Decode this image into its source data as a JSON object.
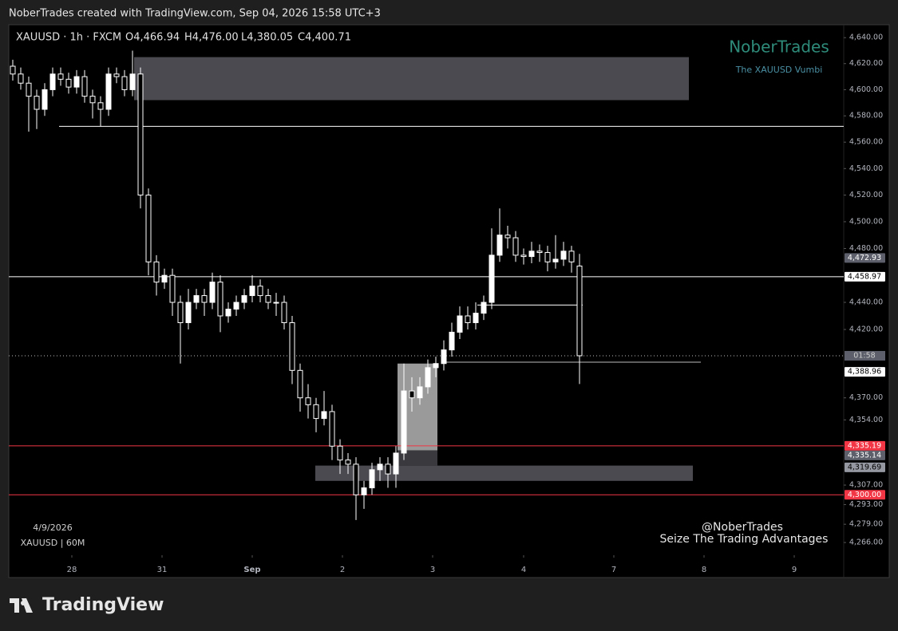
{
  "header": "NoberTrades created with TradingView.com, Sep 04, 2026 15:58 UTC+3",
  "brand": "TradingView",
  "chart_data": {
    "type": "candlestick",
    "title": "XAUUSD · 1h · FXCM",
    "ohlc_labels": [
      "O4,466.94",
      "H4,476.00",
      "L4,380.05",
      "C4,400.71"
    ],
    "watermark": {
      "title": "NoberTrades",
      "subtitle": "The XAUUSD Vumbi"
    },
    "annotations": [
      "4/9/2026",
      "XAUUSD | 60M",
      "@NoberTrades",
      "Seize The Trading Advantages"
    ],
    "countdown": "01:58",
    "log": true,
    "xlim": [
      0,
      104.6
    ],
    "ylim": [
      4257,
      4650
    ],
    "xticks": [
      {
        "value": 7.9,
        "label": "28"
      },
      {
        "value": 19.2,
        "label": "31"
      },
      {
        "value": 30.5,
        "label": "Sep"
      },
      {
        "value": 41.8,
        "label": "2"
      },
      {
        "value": 53.1,
        "label": "3"
      },
      {
        "value": 64.5,
        "label": "4"
      },
      {
        "value": 75.8,
        "label": "7"
      },
      {
        "value": 87.1,
        "label": "8"
      },
      {
        "value": 98.4,
        "label": "9"
      }
    ],
    "yticks": [
      {
        "value": 4640,
        "label": "4,640.00"
      },
      {
        "value": 4620,
        "label": "4,620.00"
      },
      {
        "value": 4600,
        "label": "4,600.00"
      },
      {
        "value": 4580,
        "label": "4,580.00"
      },
      {
        "value": 4560,
        "label": "4,560.00"
      },
      {
        "value": 4540,
        "label": "4,540.00"
      },
      {
        "value": 4520,
        "label": "4,520.00"
      },
      {
        "value": 4500,
        "label": "4,500.00"
      },
      {
        "value": 4480,
        "label": "4,480.00"
      },
      {
        "value": 4440,
        "label": "4,440.00"
      },
      {
        "value": 4420,
        "label": "4,420.00"
      },
      {
        "value": 4370,
        "label": "4,370.00"
      },
      {
        "value": 4354,
        "label": "4,354.00"
      },
      {
        "value": 4307,
        "label": "4,307.00"
      },
      {
        "value": 4293,
        "label": "4,293.00"
      },
      {
        "value": 4279,
        "label": "4,279.00"
      },
      {
        "value": 4266,
        "label": "4,266.00"
      }
    ],
    "up_color": "#ffffff",
    "down_color": "#000000",
    "x": [
      0.5,
      1.5,
      2.5,
      3.5,
      4.5,
      5.5,
      6.5,
      7.5,
      8.5,
      9.5,
      10.5,
      11.5,
      12.5,
      13.5,
      14.5,
      15.5,
      16.5,
      17.5,
      18.5,
      19.5,
      20.5,
      21.5,
      22.5,
      23.5,
      24.5,
      25.5,
      26.5,
      27.5,
      28.5,
      29.5,
      30.5,
      31.5,
      32.5,
      33.5,
      34.5,
      35.5,
      36.5,
      37.5,
      38.5,
      39.5,
      40.5,
      41.5,
      42.5,
      43.5,
      44.5,
      45.5,
      46.5,
      47.5,
      48.5,
      49.5,
      50.5,
      51.5,
      52.5,
      53.5,
      54.5,
      55.5,
      56.5,
      57.5,
      58.5,
      59.5,
      60.5,
      61.5,
      62.5,
      63.5,
      64.5,
      65.5,
      66.5,
      67.5,
      68.5,
      69.5,
      70.5,
      71.5
    ],
    "open": [
      4618,
      4612,
      4605,
      4595,
      4585,
      4600,
      4612,
      4608,
      4602,
      4610,
      4595,
      4590,
      4585,
      4612,
      4610,
      4600,
      4612,
      4520,
      4470,
      4455,
      4460,
      4440,
      4425,
      4440,
      4445,
      4440,
      4455,
      4430,
      4435,
      4440,
      4445,
      4452,
      4445,
      4440,
      4440,
      4425,
      4390,
      4370,
      4365,
      4355,
      4360,
      4335,
      4325,
      4322,
      4300,
      4305,
      4318,
      4322,
      4315,
      4330,
      4375,
      4370,
      4378,
      4392,
      4395,
      4405,
      4418,
      4430,
      4425,
      4432,
      4440,
      4475,
      4490,
      4488,
      4475,
      4474,
      4478,
      4477,
      4470,
      4472,
      4478,
      4466.94
    ],
    "high": [
      4623,
      4617,
      4610,
      4600,
      4605,
      4617,
      4617,
      4613,
      4615,
      4615,
      4600,
      4595,
      4617,
      4617,
      4615,
      4630,
      4617,
      4525,
      4475,
      4465,
      4465,
      4445,
      4450,
      4450,
      4450,
      4462,
      4460,
      4440,
      4445,
      4450,
      4460,
      4457,
      4450,
      4447,
      4445,
      4430,
      4395,
      4380,
      4370,
      4375,
      4365,
      4340,
      4330,
      4327,
      4310,
      4323,
      4327,
      4327,
      4335,
      4395,
      4385,
      4385,
      4398,
      4400,
      4412,
      4425,
      4437,
      4437,
      4440,
      4445,
      4495,
      4510,
      4497,
      4493,
      4480,
      4485,
      4483,
      4482,
      4490,
      4485,
      4482,
      4476
    ],
    "low": [
      4607,
      4600,
      4568,
      4570,
      4580,
      4595,
      4603,
      4597,
      4597,
      4590,
      4578,
      4572,
      4580,
      4605,
      4595,
      4595,
      4510,
      4460,
      4445,
      4450,
      4430,
      4395,
      4420,
      4435,
      4430,
      4435,
      4418,
      4425,
      4430,
      4435,
      4440,
      4440,
      4435,
      4430,
      4420,
      4380,
      4360,
      4355,
      4345,
      4350,
      4325,
      4315,
      4315,
      4282,
      4290,
      4300,
      4310,
      4305,
      4305,
      4325,
      4360,
      4365,
      4373,
      4385,
      4390,
      4400,
      4413,
      4420,
      4420,
      4427,
      4435,
      4470,
      4480,
      4470,
      4468,
      4469,
      4470,
      4463,
      4465,
      4467,
      4462,
      4380.05
    ],
    "close": [
      4612,
      4605,
      4595,
      4585,
      4600,
      4612,
      4608,
      4602,
      4610,
      4595,
      4590,
      4585,
      4612,
      4610,
      4600,
      4612,
      4520,
      4470,
      4455,
      4460,
      4440,
      4425,
      4440,
      4445,
      4440,
      4455,
      4430,
      4435,
      4440,
      4445,
      4452,
      4445,
      4440,
      4440,
      4425,
      4390,
      4370,
      4365,
      4355,
      4360,
      4335,
      4325,
      4322,
      4300,
      4305,
      4318,
      4322,
      4315,
      4330,
      4375,
      4370,
      4378,
      4392,
      4395,
      4405,
      4418,
      4430,
      4425,
      4432,
      4440,
      4475,
      4490,
      4488,
      4475,
      4474,
      4478,
      4477,
      4470,
      4472,
      4478,
      4470,
      4400.71
    ],
    "zones": [
      {
        "range": [
          4592,
          4625
        ],
        "x": [
          15.7,
          85.2
        ],
        "color": "#4a4a50"
      },
      {
        "range": [
          4310,
          4321
        ],
        "x": [
          38.4,
          85.7
        ],
        "color": "#4a4a50"
      },
      {
        "range": [
          4321,
          4332
        ],
        "x": [
          48.7,
          53.7
        ],
        "color": "#3a3a3e"
      },
      {
        "range": [
          4332,
          4395
        ],
        "x": [
          48.7,
          53.7
        ],
        "color": "#9a9a9a"
      }
    ],
    "levels": [
      {
        "value": 4572,
        "x": [
          6.3,
          104.6
        ],
        "color": "#ffffff"
      },
      {
        "value": 4458.97,
        "x": [
          0,
          104.6
        ],
        "color": "#ffffff"
      },
      {
        "value": 4438,
        "x": [
          58.7,
          71.9
        ],
        "color": "#ffffff"
      },
      {
        "value": 4396,
        "x": [
          54.4,
          86.7
        ],
        "color": "#bbbbbb"
      },
      {
        "value": 4335.19,
        "x": [
          0,
          104.6
        ],
        "color": "#f23645"
      },
      {
        "value": 4300,
        "x": [
          0,
          104.6
        ],
        "color": "#f23645"
      }
    ],
    "price_labels": [
      {
        "value": 4472.93,
        "label": "4,472.93",
        "color": "#5d606b",
        "text_color": "#ffffff"
      },
      {
        "value": 4458.97,
        "label": "4,458.97",
        "color": "#ffffff",
        "text_color": "#000000"
      },
      {
        "value": 4388.96,
        "label": "4,388.96",
        "color": "#ffffff",
        "text_color": "#000000"
      },
      {
        "value": 4335.19,
        "label": "4,335.19",
        "color": "#f23645",
        "text_color": "#ffffff"
      },
      {
        "value": 4335.14,
        "label": "4,335.14",
        "color": "#5d606b",
        "text_color": "#ffffff"
      },
      {
        "value": 4319.69,
        "label": "4,319.69",
        "color": "#9598a1",
        "text_color": "#000000"
      },
      {
        "value": 4300,
        "label": "4,300.00",
        "color": "#f23645",
        "text_color": "#ffffff"
      }
    ]
  }
}
